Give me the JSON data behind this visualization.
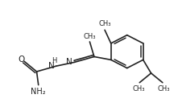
{
  "bg_color": "#ffffff",
  "line_color": "#222222",
  "lw": 1.2,
  "fs": 7.0,
  "figsize": [
    2.21,
    1.38
  ],
  "dpi": 100,
  "xlim": [
    0,
    10
  ],
  "ylim": [
    0,
    7
  ]
}
